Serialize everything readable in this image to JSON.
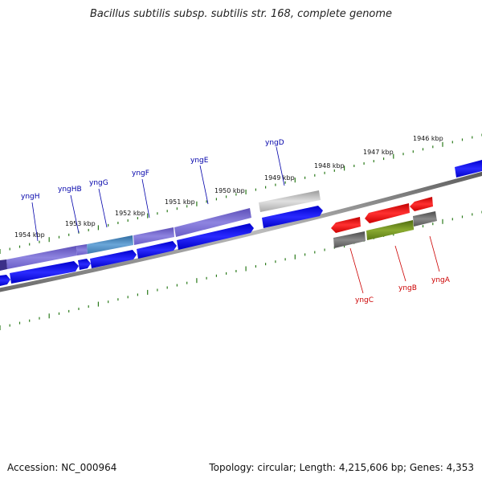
{
  "title": "Bacillus subtilis subsp. subtilis str. 168, complete genome",
  "footer": {
    "accession": "Accession: NC_000964",
    "summary": "Topology: circular; Length: 4,215,606 bp; Genes: 4,353"
  },
  "scale_labels": [
    "1954 kbp",
    "1953 kbp",
    "1952 kbp",
    "1951 kbp",
    "1950 kbp",
    "1949 kbp",
    "1948 kbp",
    "1947 kbp",
    "1946 kbp"
  ],
  "genes_forward": [
    "yngH",
    "yngHB",
    "yngG",
    "yngF",
    "yngE",
    "yngD"
  ],
  "genes_reverse": [
    "yngC",
    "yngB",
    "yngA"
  ],
  "colors": {
    "forward_label": "#0000aa",
    "reverse_label": "#cc0000",
    "tick": "#2a7a1a",
    "cds": "#0000ee",
    "gene_purple": "#7a6fd0",
    "gene_teal": "#4a86b8",
    "gene_gray": "#b8b8b8",
    "rev_red": "#ee0000",
    "rev_olive": "#6a8a1a",
    "rev_gray": "#666666",
    "backbone": "#888888"
  }
}
